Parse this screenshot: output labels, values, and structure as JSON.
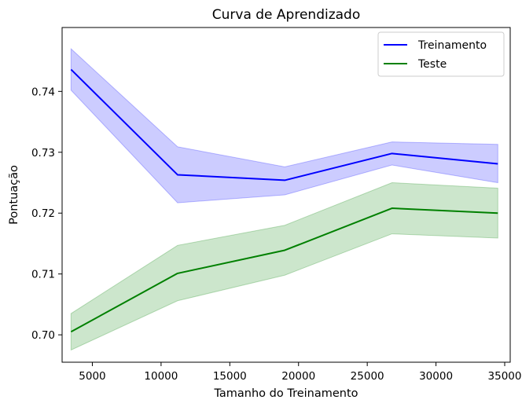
{
  "chart_data": {
    "type": "line",
    "title": "Curva de Aprendizado",
    "xlabel": "Tamanho do Treinamento",
    "ylabel": "Pontuação",
    "xlim": [
      2800,
      35400
    ],
    "ylim": [
      0.6955,
      0.7505
    ],
    "xticks": [
      5000,
      10000,
      15000,
      20000,
      25000,
      30000,
      35000
    ],
    "yticks": [
      0.7,
      0.71,
      0.72,
      0.73,
      0.74
    ],
    "ytick_labels": [
      "0.70",
      "0.71",
      "0.72",
      "0.73",
      "0.74"
    ],
    "grid": false,
    "legend_position": "top-right",
    "x": [
      3450,
      11200,
      19000,
      26800,
      34500
    ],
    "series": [
      {
        "name": "Treinamento",
        "color": "#0000ff",
        "band_color": "#0000ff",
        "values": [
          0.7436,
          0.7263,
          0.7254,
          0.7298,
          0.7281
        ],
        "upper": [
          0.747,
          0.7309,
          0.7276,
          0.7317,
          0.7313
        ],
        "lower": [
          0.7402,
          0.7217,
          0.723,
          0.7279,
          0.725
        ]
      },
      {
        "name": "Teste",
        "color": "#008000",
        "band_color": "#008000",
        "values": [
          0.7005,
          0.7101,
          0.7139,
          0.7208,
          0.72
        ],
        "upper": [
          0.7035,
          0.7147,
          0.718,
          0.725,
          0.7241
        ],
        "lower": [
          0.6975,
          0.7056,
          0.7098,
          0.7166,
          0.7159
        ]
      }
    ]
  }
}
